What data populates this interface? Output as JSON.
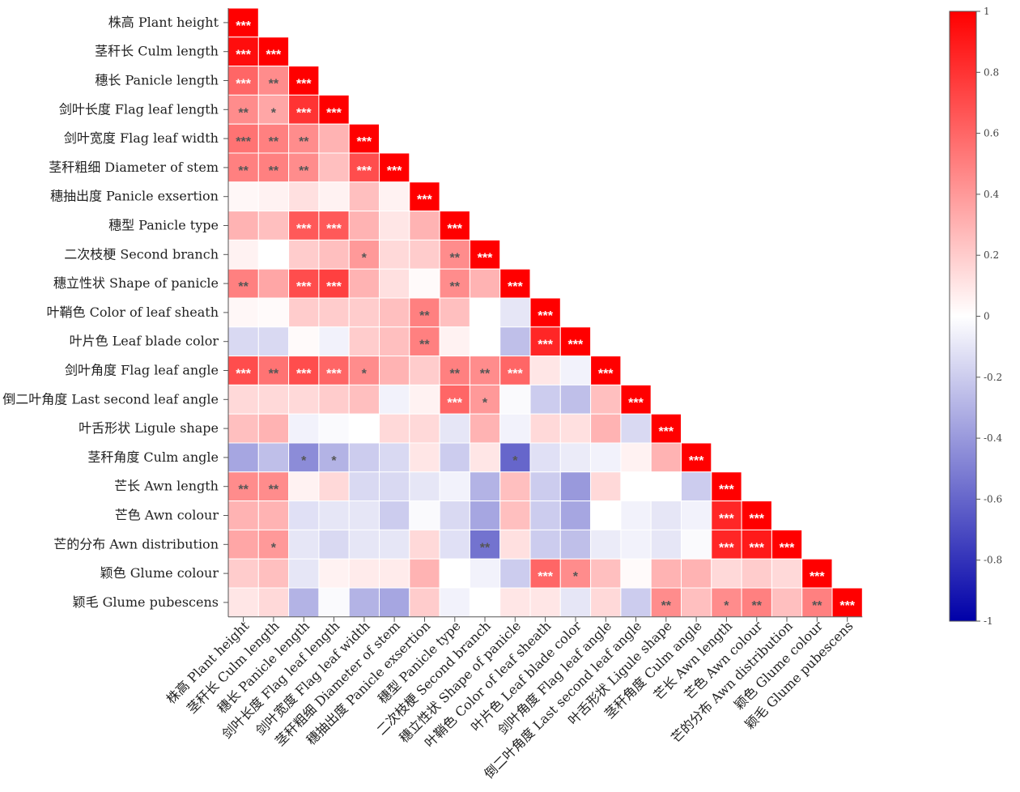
{
  "chart_data": {
    "type": "heatmap",
    "labels": [
      "株高 Plant height",
      "茎秆长 Culm length",
      "穗长 Panicle length",
      "剑叶长度 Flag leaf length",
      "剑叶宽度 Flag leaf width",
      "茎秆粗细 Diameter of stem",
      "穗抽出度 Panicle exsertion",
      "穗型 Panicle type",
      "二次枝梗 Second branch",
      "穗立性状 Shape of panicle",
      "叶鞘色 Color of leaf sheath",
      "叶片色 Leaf blade color",
      "剑叶角度 Flag leaf angle",
      "倒二叶角度 Last second leaf angle",
      "叶舌形状 Ligule shape",
      "茎秆角度 Culm angle",
      "芒长 Awn length",
      "芒色 Awn colour",
      "芒的分布 Awn distribution",
      "颖色 Glume colour",
      "颖毛 Glume pubescens"
    ],
    "matrix": [
      [
        1
      ],
      [
        0.95,
        1
      ],
      [
        0.6,
        0.45,
        1
      ],
      [
        0.45,
        0.35,
        0.8,
        1
      ],
      [
        0.55,
        0.5,
        0.45,
        0.3,
        1
      ],
      [
        0.5,
        0.5,
        0.45,
        0.25,
        0.7,
        1
      ],
      [
        0.03,
        0.05,
        0.12,
        0.05,
        0.25,
        0.05,
        1
      ],
      [
        0.3,
        0.25,
        0.65,
        0.65,
        0.3,
        0.1,
        0.3,
        1
      ],
      [
        0.05,
        0.0,
        0.2,
        0.25,
        0.4,
        0.15,
        0.2,
        0.45,
        1
      ],
      [
        0.5,
        0.35,
        0.7,
        0.75,
        0.3,
        0.12,
        0.02,
        0.45,
        0.3,
        1
      ],
      [
        0.03,
        0.02,
        0.2,
        0.2,
        0.2,
        0.25,
        0.5,
        0.25,
        0.0,
        -0.1,
        1
      ],
      [
        -0.15,
        -0.15,
        0.02,
        -0.05,
        0.2,
        0.25,
        0.5,
        0.05,
        0.0,
        -0.25,
        0.85,
        1
      ],
      [
        0.7,
        0.55,
        0.7,
        0.6,
        0.45,
        0.3,
        0.2,
        0.5,
        0.45,
        0.6,
        0.1,
        -0.05,
        1
      ],
      [
        0.15,
        0.15,
        0.15,
        0.2,
        0.25,
        -0.05,
        0.05,
        0.6,
        0.4,
        -0.02,
        -0.2,
        -0.25,
        0.25,
        1
      ],
      [
        0.25,
        0.3,
        -0.05,
        -0.02,
        0.0,
        0.15,
        0.15,
        -0.1,
        0.3,
        -0.05,
        0.15,
        0.12,
        0.3,
        -0.15,
        1
      ],
      [
        -0.35,
        -0.25,
        -0.45,
        -0.3,
        -0.2,
        -0.15,
        0.1,
        -0.2,
        0.1,
        -0.6,
        -0.12,
        -0.08,
        -0.05,
        0.05,
        0.3,
        1
      ],
      [
        0.45,
        0.45,
        0.05,
        0.15,
        -0.15,
        -0.15,
        -0.1,
        -0.05,
        -0.3,
        0.25,
        -0.2,
        -0.4,
        0.15,
        0.0,
        0.0,
        -0.2,
        1
      ],
      [
        0.3,
        0.3,
        -0.12,
        -0.1,
        -0.1,
        -0.2,
        -0.02,
        -0.15,
        -0.35,
        0.25,
        -0.2,
        -0.35,
        0.0,
        -0.05,
        -0.1,
        -0.05,
        0.85,
        1
      ],
      [
        0.35,
        0.4,
        -0.1,
        -0.15,
        -0.1,
        -0.1,
        0.15,
        -0.12,
        -0.55,
        0.12,
        -0.2,
        -0.25,
        -0.08,
        -0.05,
        -0.1,
        -0.02,
        0.85,
        0.9,
        1
      ],
      [
        0.2,
        0.25,
        -0.1,
        0.05,
        0.08,
        0.08,
        0.3,
        0.0,
        -0.05,
        -0.2,
        0.6,
        0.45,
        0.25,
        0.02,
        0.3,
        0.3,
        0.15,
        0.2,
        0.15,
        1
      ],
      [
        0.1,
        0.15,
        -0.3,
        -0.02,
        -0.3,
        -0.35,
        0.2,
        -0.05,
        0.0,
        0.1,
        0.1,
        -0.1,
        0.15,
        -0.2,
        0.45,
        0.25,
        0.45,
        0.5,
        0.25,
        0.5,
        1
      ]
    ],
    "significance": [
      [
        "***"
      ],
      [
        "***",
        "***"
      ],
      [
        "***",
        "**",
        "***"
      ],
      [
        "**",
        "*",
        "***",
        "***"
      ],
      [
        "***",
        "**",
        "**",
        "",
        "***"
      ],
      [
        "**",
        "**",
        "**",
        "",
        "***",
        "***"
      ],
      [
        "",
        "",
        "",
        "",
        "",
        "",
        "***"
      ],
      [
        "",
        "",
        "***",
        "***",
        "",
        "",
        "",
        "***"
      ],
      [
        "",
        "",
        "",
        "",
        "*",
        "",
        "",
        "**",
        "***"
      ],
      [
        "**",
        "",
        "***",
        "***",
        "",
        "",
        "",
        "**",
        "",
        "***"
      ],
      [
        "",
        "",
        "",
        "",
        "",
        "",
        "**",
        "",
        "",
        "",
        "***"
      ],
      [
        "",
        "",
        "",
        "",
        "",
        "",
        "**",
        "",
        "",
        "",
        "***",
        "***"
      ],
      [
        "***",
        "**",
        "***",
        "***",
        "*",
        "",
        "",
        "**",
        "**",
        "***",
        "",
        "",
        "***"
      ],
      [
        "",
        "",
        "",
        "",
        "",
        "",
        "",
        "***",
        "*",
        "",
        "",
        "",
        "",
        "***"
      ],
      [
        "",
        "",
        "",
        "",
        "",
        "",
        "",
        "",
        "",
        "",
        "",
        "",
        "",
        "",
        "***"
      ],
      [
        "",
        "",
        "*",
        "*",
        "",
        "",
        "",
        "",
        "",
        "*",
        "",
        "",
        "",
        "",
        "",
        "***"
      ],
      [
        "**",
        "**",
        "",
        "",
        "",
        "",
        "",
        "",
        "",
        "",
        "",
        "",
        "",
        "",
        "",
        "",
        "***"
      ],
      [
        "",
        "",
        "",
        "",
        "",
        "",
        "",
        "",
        "",
        "",
        "",
        "",
        "",
        "",
        "",
        "",
        "***",
        "***"
      ],
      [
        "",
        "*",
        "",
        "",
        "",
        "",
        "",
        "",
        "**",
        "",
        "",
        "",
        "",
        "",
        "",
        "",
        "***",
        "***",
        "***"
      ],
      [
        "",
        "",
        "",
        "",
        "",
        "",
        "",
        "",
        "",
        "",
        "***",
        "*",
        "",
        "",
        "",
        "",
        "",
        "",
        "",
        "***"
      ],
      [
        "",
        "",
        "",
        "",
        "",
        "",
        "",
        "",
        "",
        "",
        "",
        "",
        "",
        "",
        "**",
        "",
        "*",
        "**",
        "",
        "**",
        "***"
      ]
    ],
    "colorbar": {
      "range": [
        -1,
        1
      ],
      "ticks": [
        "1",
        "0.8",
        "0.6",
        "0.4",
        "0.2",
        "0",
        "-0.2",
        "-0.4",
        "-0.6",
        "-0.8",
        "-1"
      ],
      "high_color": "#ff0000",
      "mid_color": "#ffffff",
      "low_color": "#0000a8"
    }
  },
  "colors": {
    "grid_line": "#ffffff",
    "axis": "#555555",
    "star_light": "#ffffff",
    "star_dark": "#555555"
  }
}
